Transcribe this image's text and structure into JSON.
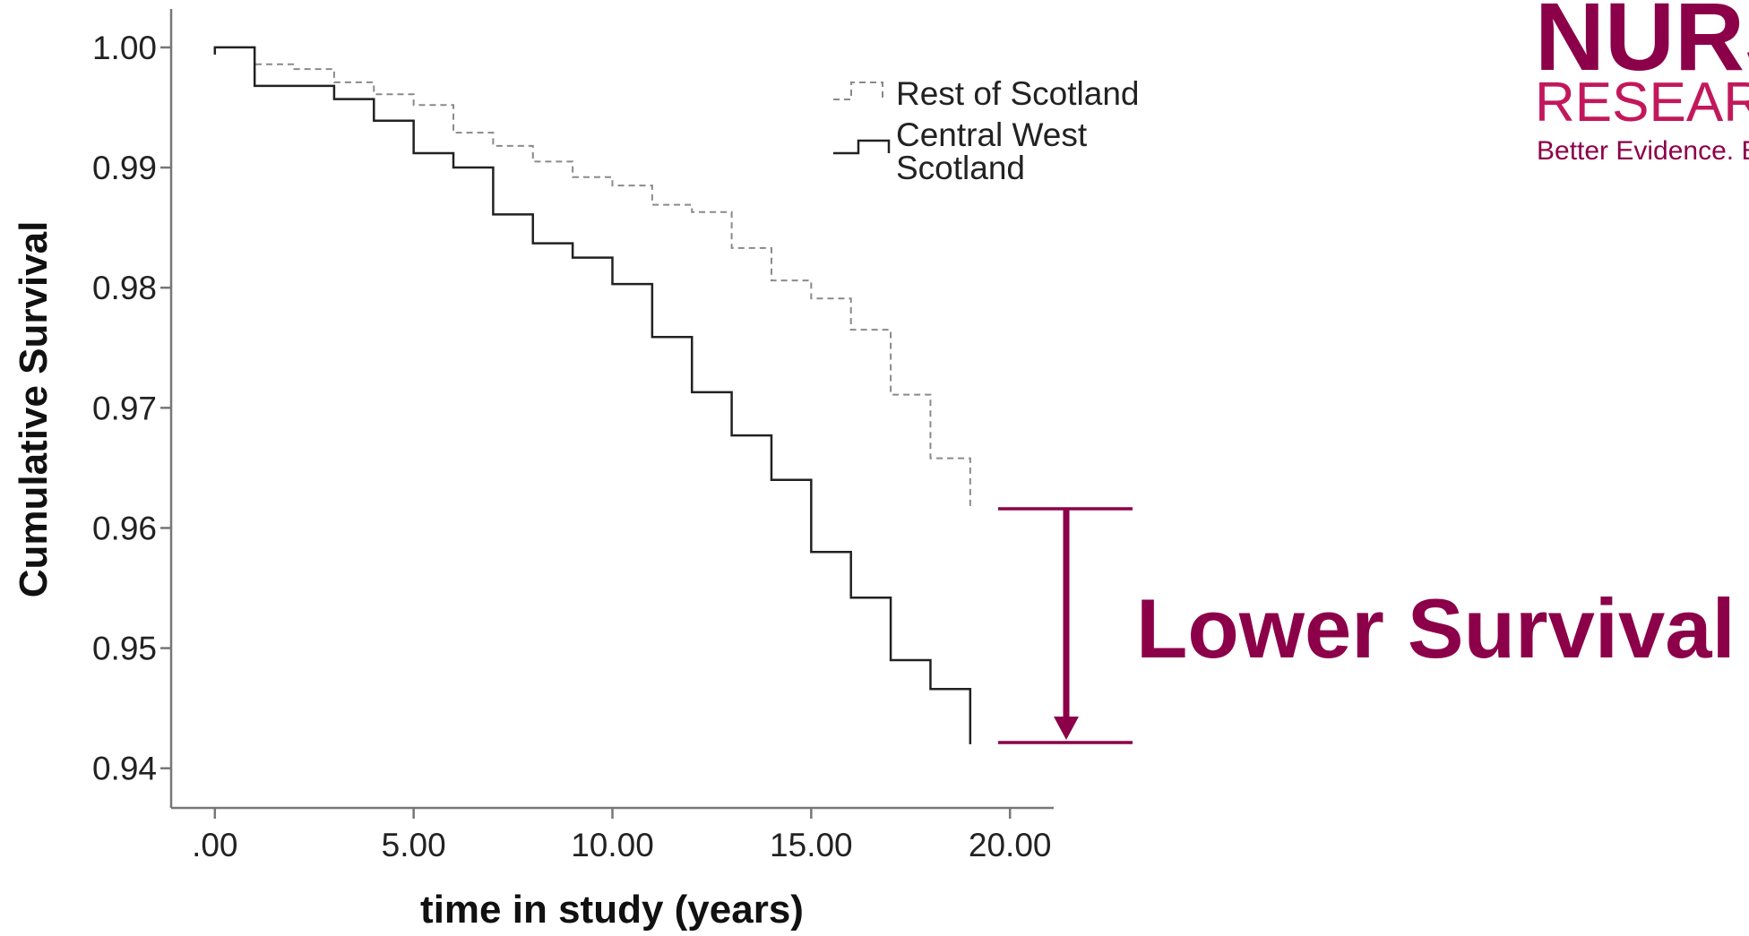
{
  "logo": {
    "main": "NURS",
    "sub": "RESEARC",
    "tagline": "Better Evidence. B"
  },
  "annotation": {
    "label": "Lower Survival"
  },
  "colors": {
    "accent": "#8c0049",
    "line": "#222222",
    "dashed": "#8a8a8a",
    "axis": "#777777"
  },
  "chart_data": {
    "type": "line",
    "step": true,
    "xlabel": "time in study (years)",
    "ylabel": "Cumulative Survival",
    "xlim": [
      -1.1,
      21.1
    ],
    "ylim": [
      0.9367,
      1.0032
    ],
    "xticks": [
      0,
      5,
      10,
      15,
      20
    ],
    "xtick_labels": [
      ".00",
      "5.00",
      "10.00",
      "15.00",
      "20.00"
    ],
    "yticks": [
      0.94,
      0.95,
      0.96,
      0.97,
      0.98,
      0.99,
      1.0
    ],
    "ytick_labels": [
      "0.94",
      "0.95",
      "0.96",
      "0.97",
      "0.98",
      "0.99",
      "1.00"
    ],
    "grid": false,
    "legend_position": "top-right",
    "series": [
      {
        "name": "Rest of Scotland",
        "style": "dashed",
        "x": [
          0,
          1,
          2,
          3,
          4,
          5,
          6,
          7,
          8,
          9,
          10,
          11,
          12,
          13,
          14,
          15,
          16,
          17,
          18,
          19
        ],
        "y": [
          1.0,
          0.9986,
          0.9982,
          0.9971,
          0.9961,
          0.9952,
          0.9929,
          0.9918,
          0.9905,
          0.9892,
          0.9885,
          0.9869,
          0.9863,
          0.9833,
          0.9806,
          0.9791,
          0.9765,
          0.9711,
          0.9658,
          0.9618
        ]
      },
      {
        "name": "Central West Scotland",
        "style": "solid",
        "x": [
          0,
          1,
          2,
          3,
          4,
          5,
          6,
          7,
          8,
          9,
          10,
          11,
          12,
          13,
          14,
          15,
          16,
          17,
          18,
          19
        ],
        "y": [
          1.0,
          0.9968,
          0.9968,
          0.9957,
          0.9939,
          0.9912,
          0.99,
          0.9861,
          0.9837,
          0.9825,
          0.9803,
          0.9759,
          0.9713,
          0.9677,
          0.964,
          0.958,
          0.9542,
          0.949,
          0.9466,
          0.942
        ]
      }
    ]
  }
}
